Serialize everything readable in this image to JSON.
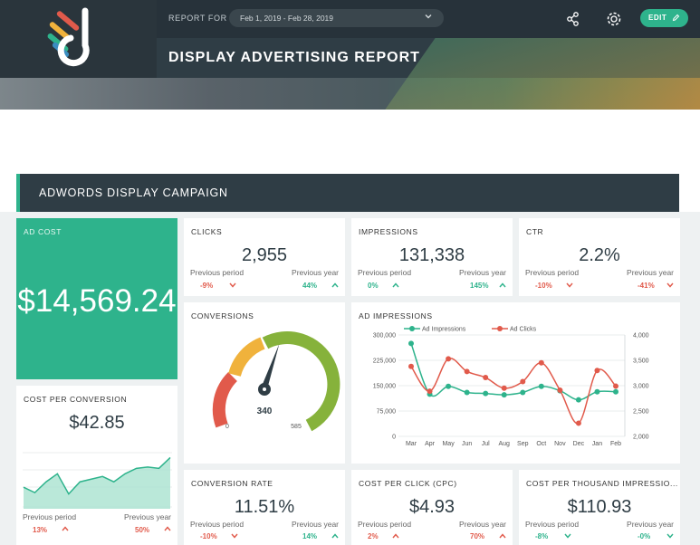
{
  "header": {
    "report_for_label": "REPORT FOR",
    "date_range": "Feb 1, 2019 - Feb 28, 2019",
    "title": "DISPLAY ADVERTISING REPORT",
    "edit_label": "EDIT"
  },
  "section": {
    "title": "ADWORDS DISPLAY CAMPAIGN"
  },
  "colors": {
    "accent": "#2eb38c",
    "negative": "#e15a4b",
    "dark": "#2f3d45",
    "gauge_red": "#e15a4b",
    "gauge_yellow": "#f0b23c",
    "gauge_green": "#86b23b"
  },
  "ad_cost": {
    "label": "AD COST",
    "value": "$14,569.24"
  },
  "clicks": {
    "label": "CLICKS",
    "value": "2,955",
    "prev_period_label": "Previous period",
    "prev_year_label": "Previous year",
    "prev_period": "-9%",
    "prev_year": "44%"
  },
  "impressions": {
    "label": "IMPRESSIONS",
    "value": "131,338",
    "prev_period_label": "Previous period",
    "prev_year_label": "Previous year",
    "prev_period": "0%",
    "prev_year": "145%"
  },
  "ctr": {
    "label": "CTR",
    "value": "2.2%",
    "prev_period_label": "Previous period",
    "prev_year_label": "Previous year",
    "prev_period": "-10%",
    "prev_year": "-41%"
  },
  "conversions": {
    "label": "CONVERSIONS",
    "value": "340",
    "min": "0",
    "max": "585",
    "gauge_value": 340,
    "gauge_min": 0,
    "gauge_max": 585
  },
  "cost_per_conversion": {
    "label": "COST PER CONVERSION",
    "value": "$42.85",
    "prev_period_label": "Previous period",
    "prev_year_label": "Previous year",
    "prev_period": "13%",
    "prev_year": "50%",
    "sparkline": [
      26,
      22,
      30,
      36,
      21,
      30,
      32,
      34,
      30,
      36,
      40,
      41,
      40,
      48
    ]
  },
  "conversion_rate": {
    "label": "CONVERSION RATE",
    "value": "11.51%",
    "prev_period_label": "Previous period",
    "prev_year_label": "Previous year",
    "prev_period": "-10%",
    "prev_year": "14%"
  },
  "cpc": {
    "label": "COST PER CLICK (CPC)",
    "value": "$4.93",
    "prev_period_label": "Previous period",
    "prev_year_label": "Previous year",
    "prev_period": "2%",
    "prev_year": "70%"
  },
  "cpm": {
    "label": "COST PER THOUSAND IMPRESSIO...",
    "value": "$110.93",
    "prev_period_label": "Previous period",
    "prev_year_label": "Previous year",
    "prev_period": "-8%",
    "prev_year": "-0%"
  },
  "chart_data": {
    "type": "line",
    "title": "AD IMPRESSIONS",
    "categories": [
      "Mar",
      "Apr",
      "May",
      "Jun",
      "Jul",
      "Aug",
      "Sep",
      "Oct",
      "Nov",
      "Dec",
      "Jan",
      "Feb"
    ],
    "series": [
      {
        "name": "Ad Impressions",
        "axis": "left",
        "color": "#2eb38c",
        "values": [
          275000,
          125000,
          148000,
          130000,
          127000,
          123000,
          130000,
          148000,
          135000,
          108000,
          132000,
          132000
        ]
      },
      {
        "name": "Ad Clicks",
        "axis": "right",
        "color": "#e15a4b",
        "values": [
          3380,
          2890,
          3530,
          3280,
          3160,
          2950,
          3080,
          3450,
          2910,
          2260,
          3300,
          2990
        ]
      }
    ],
    "left_axis": {
      "ticks": [
        "300,000",
        "225,000",
        "150,000",
        "75,000",
        "0"
      ],
      "min": 0,
      "max": 300000
    },
    "right_axis": {
      "ticks": [
        "4,000",
        "3,500",
        "3,000",
        "2,500",
        "2,000"
      ],
      "min": 2000,
      "max": 4000
    },
    "legend_placement": "top",
    "grid": true
  }
}
